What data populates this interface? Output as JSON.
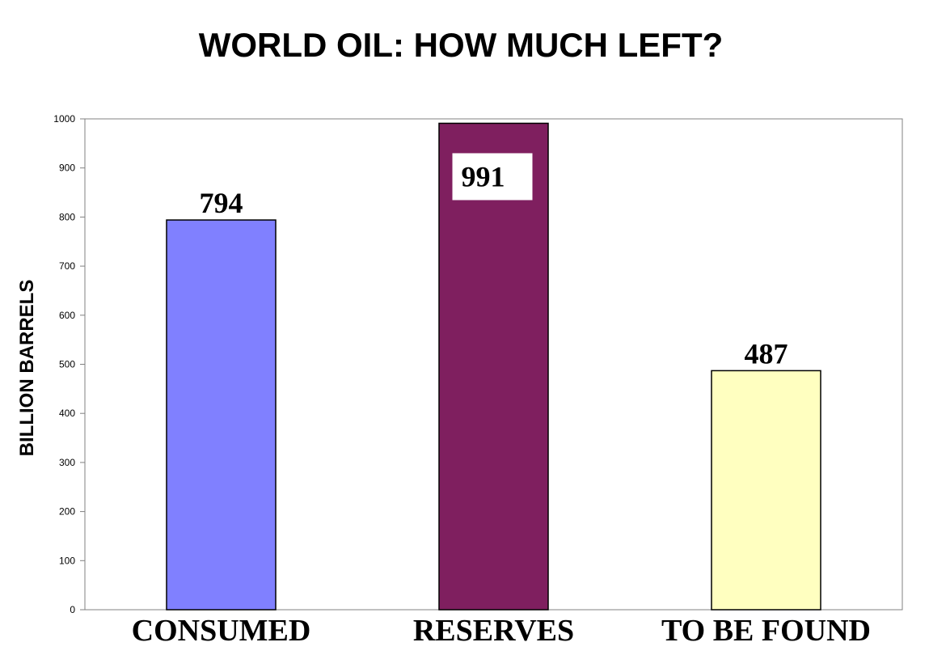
{
  "chart_data": {
    "type": "bar",
    "title": "WORLD OIL: HOW MUCH LEFT?",
    "xlabel": "",
    "ylabel": "BILLION BARRELS",
    "ylim": [
      0,
      1000
    ],
    "yticks": [
      0,
      100,
      200,
      300,
      400,
      500,
      600,
      700,
      800,
      900,
      1000
    ],
    "categories": [
      "CONSUMED",
      "RESERVES",
      "TO BE FOUND"
    ],
    "values": [
      794,
      991,
      487
    ],
    "data_labels": [
      "794",
      "991",
      "487"
    ],
    "colors": [
      "#8080FF",
      "#7F1F5F",
      "#FFFFC0"
    ],
    "grid": false,
    "legend": "none"
  }
}
